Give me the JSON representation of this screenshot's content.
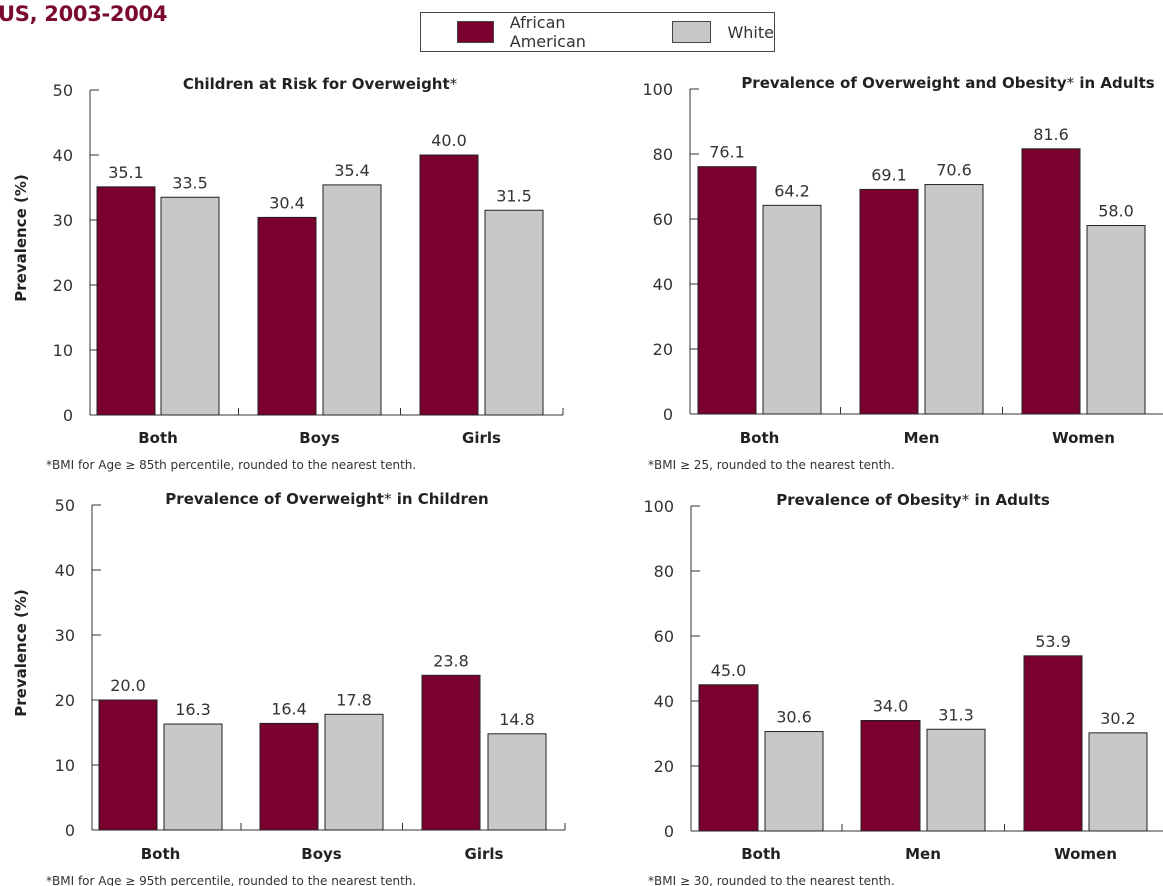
{
  "page": {
    "title": "US, 2003-2004"
  },
  "legend": {
    "items": [
      {
        "label": "African American",
        "color": "#7a0030"
      },
      {
        "label": "White",
        "color": "#c8c8c8"
      }
    ]
  },
  "colors": {
    "african_american": "#7a0030",
    "white": "#c8c8c8",
    "title_accent": "#7a0a2e"
  },
  "chart_data": [
    {
      "type": "bar",
      "title": "Children at Risk for Overweight",
      "title_marker": "*",
      "ylabel": "Prevalence (%)",
      "ylim": [
        0,
        50
      ],
      "yticks": [
        "0",
        "10",
        "20",
        "30",
        "40",
        "50"
      ],
      "categories": [
        "Both",
        "Boys",
        "Girls"
      ],
      "series": [
        {
          "name": "African American",
          "values": [
            35.1,
            30.4,
            40.0
          ],
          "labels": [
            "35.1",
            "30.4",
            "40.0"
          ]
        },
        {
          "name": "White",
          "values": [
            33.5,
            35.4,
            31.5
          ],
          "labels": [
            "33.5",
            "35.4",
            "31.5"
          ]
        }
      ],
      "footnote": "*BMI for Age ≥ 85th percentile, rounded to the nearest tenth."
    },
    {
      "type": "bar",
      "title": "Prevalence of Overweight and Obesity",
      "title_marker": "*",
      "title_suffix": " in Adults",
      "ylabel": "",
      "ylim": [
        0,
        100
      ],
      "yticks": [
        "0",
        "20",
        "40",
        "60",
        "80",
        "100"
      ],
      "categories": [
        "Both",
        "Men",
        "Women"
      ],
      "series": [
        {
          "name": "African American",
          "values": [
            76.1,
            69.1,
            81.6
          ],
          "labels": [
            "76.1",
            "69.1",
            "81.6"
          ]
        },
        {
          "name": "White",
          "values": [
            64.2,
            70.6,
            58.0
          ],
          "labels": [
            "64.2",
            "70.6",
            "58.0"
          ]
        }
      ],
      "footnote": "*BMI ≥ 25, rounded to the nearest tenth."
    },
    {
      "type": "bar",
      "title": "Prevalence of Overweight",
      "title_marker": "*",
      "title_suffix": " in Children",
      "ylabel": "Prevalence (%)",
      "ylim": [
        0,
        50
      ],
      "yticks": [
        "0",
        "10",
        "20",
        "30",
        "40",
        "50"
      ],
      "categories": [
        "Both",
        "Boys",
        "Girls"
      ],
      "series": [
        {
          "name": "African American",
          "values": [
            20.0,
            16.4,
            23.8
          ],
          "labels": [
            "20.0",
            "16.4",
            "23.8"
          ]
        },
        {
          "name": "White",
          "values": [
            16.3,
            17.8,
            14.8
          ],
          "labels": [
            "16.3",
            "17.8",
            "14.8"
          ]
        }
      ],
      "footnote": "*BMI for Age ≥ 95th percentile, rounded to the nearest tenth."
    },
    {
      "type": "bar",
      "title": "Prevalence of Obesity",
      "title_marker": "*",
      "title_suffix": " in Adults",
      "ylabel": "",
      "ylim": [
        0,
        100
      ],
      "yticks": [
        "0",
        "20",
        "40",
        "60",
        "80",
        "100"
      ],
      "categories": [
        "Both",
        "Men",
        "Women"
      ],
      "series": [
        {
          "name": "African American",
          "values": [
            45.0,
            34.0,
            53.9
          ],
          "labels": [
            "45.0",
            "34.0",
            "53.9"
          ]
        },
        {
          "name": "White",
          "values": [
            30.6,
            31.3,
            30.2
          ],
          "labels": [
            "30.6",
            "31.3",
            "30.2"
          ]
        }
      ],
      "footnote": "*BMI ≥ 30, rounded to the nearest tenth."
    }
  ]
}
